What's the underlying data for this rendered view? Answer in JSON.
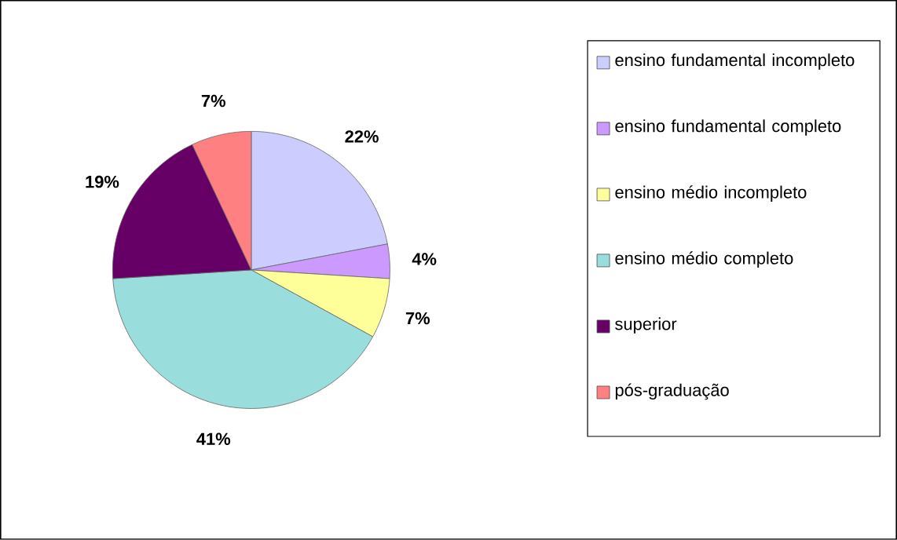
{
  "chart_data": {
    "type": "pie",
    "categories": [
      "ensino fundamental incompleto",
      "ensino fundamental completo",
      "ensino médio incompleto",
      "ensino médio completo",
      "superior",
      "pós-graduação"
    ],
    "values": [
      22,
      4,
      7,
      41,
      19,
      7
    ],
    "value_labels": [
      "22%",
      "4%",
      "7%",
      "41%",
      "19%",
      "7%"
    ],
    "colors": [
      "#ccccff",
      "#cc99ff",
      "#ffff99",
      "#99dddd",
      "#660066",
      "#ff8080"
    ],
    "legend": "right"
  }
}
